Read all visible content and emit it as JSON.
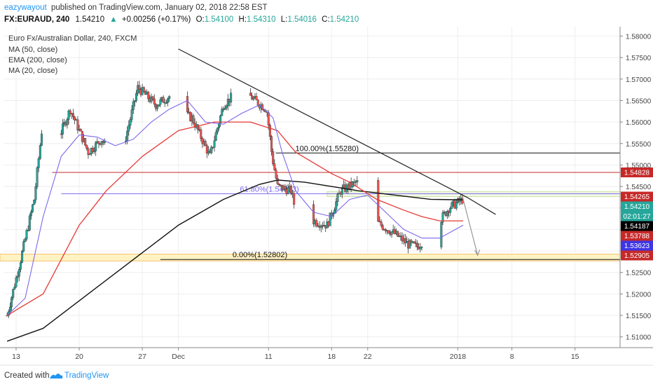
{
  "header": {
    "author": "eazywayout",
    "published_text": "published on TradingView.com, January 02, 2018 22:58 EST",
    "symbol": "FX:EURAUD, 240",
    "last": "1.54210",
    "change_arrow": "▲",
    "change": "+0.00256 (+0.17%)",
    "o_label": "O:",
    "o_value": "1.54100",
    "h_label": "H:",
    "h_value": "1.54310",
    "l_label": "L:",
    "l_value": "1.54016",
    "c_label": "C:",
    "c_value": "1.54210"
  },
  "legend": {
    "title": "Euro Fx/Australian Dollar, 240, FXCM",
    "indicators": [
      "MA (50, close)",
      "EMA (200, close)",
      "MA (20, close)"
    ]
  },
  "footer": {
    "created_with": "Created with",
    "brand": "TradingView"
  },
  "colors": {
    "up": "#26a69a",
    "down": "#ef5350",
    "ma50": "#e53935",
    "ema200": "#111111",
    "ma20": "#7b68ee",
    "fib_fill": "#fff3c4",
    "label_red": "#c62828",
    "label_black": "#000000",
    "label_blue": "#3d35e6",
    "label_green": "#26a69a",
    "trendline": "#222222",
    "grid": "#eeeeee"
  },
  "chart_data": {
    "type": "candlestick",
    "title": "Euro Fx/Australian Dollar, 240, FXCM",
    "ylim": [
      1.5075,
      1.5822
    ],
    "y_ticks": [
      "1.58000",
      "1.57500",
      "1.57000",
      "1.56500",
      "1.56000",
      "1.55500",
      "1.55000",
      "1.54500",
      "1.54000",
      "1.53500",
      "1.53000",
      "1.52500",
      "1.52000",
      "1.51500",
      "1.51000"
    ],
    "x_ticks": [
      {
        "label": "13",
        "d": 0
      },
      {
        "label": "20",
        "d": 7
      },
      {
        "label": "27",
        "d": 14
      },
      {
        "label": "Dec",
        "d": 18
      },
      {
        "label": "11",
        "d": 28
      },
      {
        "label": "18",
        "d": 35
      },
      {
        "label": "22",
        "d": 39
      },
      {
        "label": "2018",
        "d": 49
      },
      {
        "label": "8",
        "d": 55
      },
      {
        "label": "15",
        "d": 62
      }
    ],
    "x_range_days": [
      -1.4,
      67
    ],
    "candles_per_day": 6,
    "keypoints": [
      [
        -1.0,
        1.515
      ],
      [
        0.5,
        1.528
      ],
      [
        2.0,
        1.542
      ],
      [
        3.0,
        1.561
      ],
      [
        4.5,
        1.555
      ],
      [
        6.0,
        1.563
      ],
      [
        7.0,
        1.558
      ],
      [
        8.0,
        1.553
      ],
      [
        9.5,
        1.556
      ],
      [
        10.5,
        1.552
      ],
      [
        12.0,
        1.555
      ],
      [
        13.5,
        1.568
      ],
      [
        15.5,
        1.564
      ],
      [
        17.0,
        1.566
      ],
      [
        17.7,
        1.577
      ],
      [
        18.4,
        1.562
      ],
      [
        19.5,
        1.561
      ],
      [
        21.5,
        1.552
      ],
      [
        23.0,
        1.564
      ],
      [
        25.0,
        1.568
      ],
      [
        26.5,
        1.565
      ],
      [
        27.8,
        1.563
      ],
      [
        28.4,
        1.552
      ],
      [
        29.0,
        1.545
      ],
      [
        30.5,
        1.544
      ],
      [
        31.5,
        1.535
      ],
      [
        33.0,
        1.537
      ],
      [
        34.5,
        1.536
      ],
      [
        36.0,
        1.544
      ],
      [
        37.8,
        1.546
      ],
      [
        38.4,
        1.544
      ],
      [
        39.0,
        1.538
      ],
      [
        40.5,
        1.536
      ],
      [
        42.0,
        1.534
      ],
      [
        43.5,
        1.5315
      ],
      [
        44.5,
        1.531
      ],
      [
        46.0,
        1.534
      ],
      [
        48.0,
        1.54
      ],
      [
        49.6,
        1.5421
      ]
    ],
    "ma50": [
      [
        -1.0,
        1.515
      ],
      [
        3.0,
        1.52
      ],
      [
        7.0,
        1.536
      ],
      [
        10.0,
        1.544
      ],
      [
        14.0,
        1.552
      ],
      [
        18.0,
        1.558
      ],
      [
        22.0,
        1.56
      ],
      [
        26.0,
        1.56
      ],
      [
        29.0,
        1.558
      ],
      [
        31.0,
        1.553
      ],
      [
        35.0,
        1.548
      ],
      [
        37.0,
        1.546
      ],
      [
        40.0,
        1.542
      ],
      [
        43.0,
        1.5395
      ],
      [
        45.0,
        1.538
      ],
      [
        47.0,
        1.537
      ],
      [
        49.6,
        1.537
      ]
    ],
    "ema200": [
      [
        -1.0,
        1.509
      ],
      [
        3.0,
        1.512
      ],
      [
        8.0,
        1.52
      ],
      [
        13.0,
        1.528
      ],
      [
        18.0,
        1.536
      ],
      [
        23.0,
        1.542
      ],
      [
        27.0,
        1.5455
      ],
      [
        29.0,
        1.5465
      ],
      [
        32.0,
        1.546
      ],
      [
        35.0,
        1.545
      ],
      [
        38.0,
        1.544
      ],
      [
        42.0,
        1.543
      ],
      [
        46.0,
        1.542
      ],
      [
        49.6,
        1.5419
      ]
    ],
    "ma20": [
      [
        -1.0,
        1.515
      ],
      [
        1.0,
        1.519
      ],
      [
        3.0,
        1.538
      ],
      [
        5.0,
        1.552
      ],
      [
        7.0,
        1.557
      ],
      [
        9.0,
        1.5565
      ],
      [
        11.0,
        1.5545
      ],
      [
        13.0,
        1.556
      ],
      [
        15.0,
        1.56
      ],
      [
        17.0,
        1.563
      ],
      [
        19.0,
        1.565
      ],
      [
        21.0,
        1.56
      ],
      [
        23.0,
        1.5595
      ],
      [
        25.0,
        1.562
      ],
      [
        27.0,
        1.564
      ],
      [
        28.5,
        1.561
      ],
      [
        29.5,
        1.553
      ],
      [
        31.0,
        1.544
      ],
      [
        33.0,
        1.539
      ],
      [
        35.0,
        1.538
      ],
      [
        37.0,
        1.542
      ],
      [
        39.0,
        1.543
      ],
      [
        41.0,
        1.539
      ],
      [
        43.0,
        1.535
      ],
      [
        45.0,
        1.533
      ],
      [
        47.0,
        1.533
      ],
      [
        49.6,
        1.536
      ]
    ],
    "trendline": [
      [
        18.0,
        1.577
      ],
      [
        50.0,
        1.5425
      ],
      [
        53.2,
        1.5385
      ]
    ],
    "projection": [
      [
        49.5,
        1.5428
      ],
      [
        51.2,
        1.529
      ]
    ],
    "levels": [
      {
        "name": "fib-100",
        "value": 1.5528,
        "x_from": 28.8,
        "label": "100.00%(1.55280)",
        "color": "#111111"
      },
      {
        "name": "resistance",
        "value": 1.54828,
        "x_from": 4.0,
        "color": "#c62828"
      },
      {
        "name": "fib-61.8",
        "value": 1.54333,
        "x_from": 5.0,
        "label": "61.80%(1.54333)",
        "color": "#7b68ee"
      },
      {
        "name": "fib-0",
        "value": 1.52802,
        "x_from": 16.0,
        "label": "0.00%(1.52802)",
        "color": "#111111"
      }
    ],
    "fib_zone": [
      1.528,
      1.5291
    ],
    "price_labels": [
      {
        "value": 1.54828,
        "text": "1.54828",
        "bg": "#c62828"
      },
      {
        "value": 1.54265,
        "text": "1.54265",
        "bg": "#c62828"
      },
      {
        "value": 1.5421,
        "text": "1.54210",
        "bg": "#26a69a"
      },
      {
        "value": 1.5418,
        "text": "02:01:27",
        "bg": "#26a69a"
      },
      {
        "value": 1.54187,
        "text": "1.54187",
        "bg": "#000000"
      },
      {
        "value": 1.53788,
        "text": "1.53788",
        "bg": "#c62828"
      },
      {
        "value": 1.53623,
        "text": "1.53623",
        "bg": "#3d35e6"
      },
      {
        "value": 1.52905,
        "text": "1.52905",
        "bg": "#c62828"
      }
    ]
  }
}
